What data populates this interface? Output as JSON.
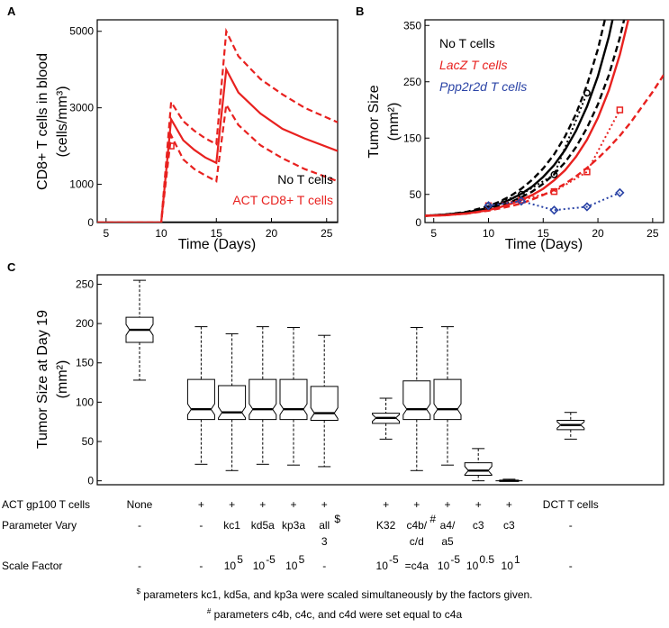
{
  "chart_data": [
    {
      "panel": "A",
      "type": "line",
      "xlabel": "Time (Days)",
      "ylabel_line1": "CD8+ T cells in blood",
      "ylabel_line2": "(cells/mm³)",
      "xlim": [
        4.2,
        26
      ],
      "ylim": [
        0,
        5300
      ],
      "xticks": [
        5,
        10,
        15,
        20,
        25
      ],
      "yticks": [
        0,
        1000,
        3000,
        5000
      ],
      "legend": [
        "No T cells",
        "ACT CD8+ T cells"
      ],
      "colors": {
        "no_t": "#000000",
        "act": "#e8211f"
      },
      "series": [
        {
          "name": "No T cells",
          "style": "solid",
          "x": [
            4.2,
            26
          ],
          "y": [
            0,
            0
          ]
        },
        {
          "name": "ACT CD8+ T cells",
          "style": "solid",
          "x": [
            4.2,
            10,
            10.9,
            12,
            13,
            14,
            15,
            15.9,
            17,
            19,
            21,
            23,
            26
          ],
          "y": [
            0,
            0,
            2700,
            2150,
            1900,
            1700,
            1560,
            4000,
            3400,
            2850,
            2450,
            2200,
            1870
          ]
        },
        {
          "name": "ACT upper",
          "style": "dashed",
          "x": [
            4.2,
            10,
            10.9,
            12,
            13,
            14,
            15,
            15.9,
            17,
            19,
            21,
            23,
            26
          ],
          "y": [
            0,
            0,
            3150,
            2650,
            2400,
            2200,
            2050,
            5000,
            4350,
            3750,
            3350,
            3000,
            2620
          ]
        },
        {
          "name": "ACT lower",
          "style": "dashed",
          "x": [
            4.2,
            10,
            10.9,
            12,
            13,
            14,
            15,
            15.9,
            17,
            19,
            21,
            23,
            26
          ],
          "y": [
            0,
            0,
            2280,
            1650,
            1400,
            1230,
            1080,
            3080,
            2550,
            2020,
            1680,
            1400,
            1080
          ]
        }
      ],
      "markers": [
        {
          "x": 10.9,
          "y": 2000
        }
      ]
    },
    {
      "panel": "B",
      "type": "line",
      "xlabel": "Time (Days)",
      "ylabel_line1": "Tumor Size",
      "ylabel_line2": "(mm²)",
      "xlim": [
        4.2,
        26
      ],
      "ylim": [
        0,
        360
      ],
      "xticks": [
        5,
        10,
        15,
        20,
        25
      ],
      "yticks": [
        0,
        50,
        150,
        250,
        350
      ],
      "legend": [
        "No T cells",
        "LacZ T cells",
        "Ppp2r2d T cells"
      ],
      "colors": {
        "no_t": "#000000",
        "lacz": "#e8211f",
        "ppp": "#2b44a6"
      },
      "series": [
        {
          "name": "No T cells",
          "style": "solid",
          "x": [
            4.2,
            6,
            8,
            10,
            11,
            12,
            13,
            14,
            15,
            16,
            17,
            18,
            19,
            20,
            21,
            22
          ],
          "y": [
            12,
            14,
            18,
            26,
            33,
            41,
            51,
            64,
            81,
            102,
            129,
            163,
            206,
            260,
            330,
            420
          ]
        },
        {
          "name": "No T upper",
          "style": "dashed",
          "x": [
            4.2,
            6,
            8,
            10,
            11,
            12,
            13,
            14,
            15,
            16,
            17,
            18,
            19,
            20,
            21,
            22
          ],
          "y": [
            12,
            14,
            19,
            29,
            37,
            47,
            60,
            76,
            96,
            121,
            153,
            193,
            244,
            308,
            390,
            490
          ]
        },
        {
          "name": "No T lower",
          "style": "dashed",
          "x": [
            4.2,
            6,
            8,
            10,
            11,
            12,
            13,
            14,
            15,
            16,
            17,
            18,
            19,
            20,
            21,
            22,
            23
          ],
          "y": [
            12,
            14,
            17,
            24,
            29,
            36,
            45,
            55,
            69,
            86,
            107,
            134,
            168,
            210,
            262,
            328,
            410
          ]
        },
        {
          "name": "LacZ T cells",
          "style": "solid",
          "x": [
            4.2,
            6,
            8,
            10,
            11,
            12,
            13,
            14,
            15,
            16,
            17,
            18,
            19,
            20,
            21,
            22,
            23
          ],
          "y": [
            12,
            13,
            16,
            22,
            27,
            33,
            40,
            49,
            60,
            75,
            93,
            117,
            147,
            186,
            235,
            298,
            378
          ]
        },
        {
          "name": "LacZ lower",
          "style": "dashed",
          "x": [
            4.2,
            6,
            8,
            10,
            12,
            13,
            14,
            15,
            16,
            17,
            18,
            19,
            20,
            21,
            22,
            23,
            24,
            25,
            26
          ],
          "y": [
            12,
            13,
            16,
            21,
            29,
            34,
            41,
            49,
            58,
            69,
            82,
            97,
            114,
            133,
            154,
            178,
            205,
            232,
            262
          ]
        },
        {
          "name": "LacZ observed",
          "style": "dotted",
          "x": [
            10,
            13,
            16,
            19,
            22
          ],
          "y": [
            30,
            40,
            55,
            90,
            200
          ]
        },
        {
          "name": "No T observed",
          "style": "dotted",
          "x": [
            10,
            13,
            16,
            19
          ],
          "y": [
            29,
            50,
            85,
            230
          ]
        },
        {
          "name": "Ppp2r2d observed",
          "style": "dotted",
          "x": [
            10,
            13,
            16,
            19,
            22
          ],
          "y": [
            30,
            38,
            22,
            28,
            53
          ]
        }
      ]
    },
    {
      "panel": "C",
      "type": "box",
      "ylabel_line1": "Tumor Size at Day 19",
      "ylabel_line2": "(mm²)",
      "ylim": [
        -5,
        262
      ],
      "yticks": [
        0,
        50,
        100,
        150,
        200,
        250
      ],
      "boxes": [
        {
          "x": 0,
          "min": 128,
          "q1": 176,
          "med": 192,
          "q3": 208,
          "max": 255
        },
        {
          "x": 2,
          "min": 21,
          "q1": 78,
          "med": 91,
          "q3": 129,
          "max": 196
        },
        {
          "x": 3,
          "min": 13,
          "q1": 78,
          "med": 87,
          "q3": 121,
          "max": 187
        },
        {
          "x": 4,
          "min": 21,
          "q1": 78,
          "med": 91,
          "q3": 129,
          "max": 196
        },
        {
          "x": 5,
          "min": 20,
          "q1": 78,
          "med": 91,
          "q3": 129,
          "max": 195
        },
        {
          "x": 6,
          "min": 18,
          "q1": 77,
          "med": 86,
          "q3": 120,
          "max": 185
        },
        {
          "x": 8,
          "min": 53,
          "q1": 73,
          "med": 80,
          "q3": 86,
          "max": 105
        },
        {
          "x": 9,
          "min": 13,
          "q1": 78,
          "med": 91,
          "q3": 127,
          "max": 195
        },
        {
          "x": 10,
          "min": 20,
          "q1": 78,
          "med": 91,
          "q3": 129,
          "max": 196
        },
        {
          "x": 11,
          "min": 0,
          "q1": 7,
          "med": 13,
          "q3": 23,
          "max": 41
        },
        {
          "x": 12,
          "min": 0,
          "q1": 0,
          "med": 0,
          "q3": 0,
          "max": 2
        },
        {
          "x": 14,
          "min": 53,
          "q1": 65,
          "med": 71,
          "q3": 77,
          "max": 87
        }
      ]
    }
  ],
  "panel_labels": {
    "a": "A",
    "b": "B",
    "c": "C"
  },
  "table": {
    "row_labels": [
      "ACT gp100 T cells",
      "Parameter Vary",
      "Scale Factor"
    ],
    "act": [
      "None",
      "+",
      "+",
      "+",
      "+",
      "+",
      "+",
      "+",
      "+",
      "+",
      "+",
      "DCT T cells"
    ],
    "param_line1": [
      "-",
      "-",
      "kc1",
      "kd5a",
      "kp3a",
      "all",
      "K32",
      "c4b/",
      "a4/",
      "c3",
      "c3",
      "-"
    ],
    "param_line2": [
      "",
      "",
      "",
      "",
      "",
      "3",
      "",
      "c/d",
      "a5",
      "",
      "",
      ""
    ],
    "param_sup": [
      "",
      "",
      "",
      "",
      "",
      "$",
      "",
      "#",
      "",
      "",
      "",
      ""
    ],
    "scale_base": [
      "-",
      "-",
      "10",
      "10",
      "10",
      "-",
      "10",
      "=c4a",
      "10",
      "10",
      "10",
      "-"
    ],
    "scale_exp": [
      "",
      "",
      "5",
      "-5",
      "5",
      "",
      "-5",
      "",
      "-5",
      "0.5",
      "1",
      ""
    ]
  },
  "footnotes": {
    "dollar_symbol": "$",
    "dollar_text": " parameters kc1, kd5a, and kp3a were scaled simultaneously by the factors given.",
    "hash_symbol": "#",
    "hash_text": " parameters c4b, c4c, and c4d were set equal to c4a"
  }
}
